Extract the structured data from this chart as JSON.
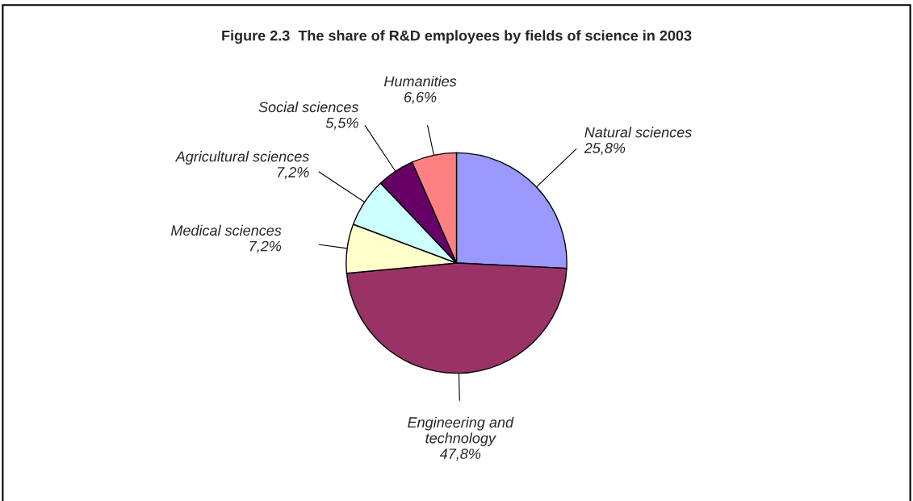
{
  "chart_data": {
    "type": "pie",
    "title": "Figure 2.3  The share of R&D employees by fields of science in 2003",
    "categories": [
      "Natural sciences",
      "Engineering and\ntechnology",
      "Medical sciences",
      "Agricultural sciences",
      "Social sciences",
      "Humanities"
    ],
    "values": [
      25.8,
      47.8,
      7.2,
      7.2,
      5.5,
      6.6
    ],
    "value_labels": [
      "25,8%",
      "47,8%",
      "7,2%",
      "7,2%",
      "5,5%",
      "6,6%"
    ],
    "colors": [
      "#9999ff",
      "#993366",
      "#ffffcc",
      "#ccffff",
      "#660066",
      "#ff8080"
    ]
  }
}
